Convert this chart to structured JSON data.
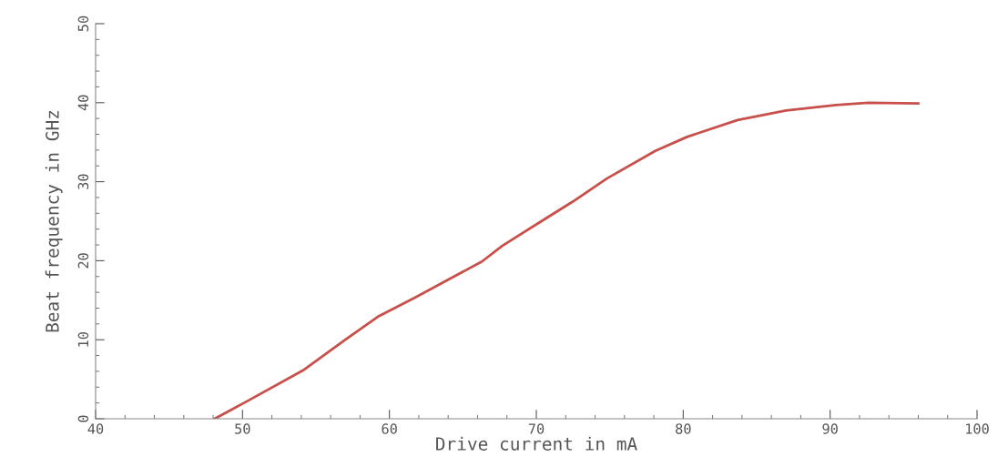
{
  "chart_data": {
    "type": "line",
    "xlabel": "Drive current in mA",
    "ylabel": "Beat frequency in GHz",
    "x": [
      48.1,
      50.1,
      54.1,
      57.0,
      59.2,
      61.7,
      66.3,
      67.7,
      70.0,
      72.5,
      74.8,
      78.1,
      80.3,
      83.7,
      87.0,
      90.4,
      92.6,
      96.0
    ],
    "values": [
      0,
      2.0,
      6.1,
      10.0,
      12.9,
      15.3,
      19.9,
      21.9,
      24.6,
      27.5,
      30.4,
      33.9,
      35.7,
      37.8,
      39.0,
      39.7,
      40.0,
      39.9
    ],
    "color": "#c8504a",
    "xlim": [
      40,
      100
    ],
    "ylim": [
      0,
      50
    ],
    "xticks": [
      40,
      50,
      60,
      70,
      80,
      90,
      100
    ],
    "yticks": [
      0,
      10,
      20,
      30,
      40,
      50
    ],
    "grid": false,
    "legend": false,
    "marker": "none",
    "line_style": "solid"
  }
}
